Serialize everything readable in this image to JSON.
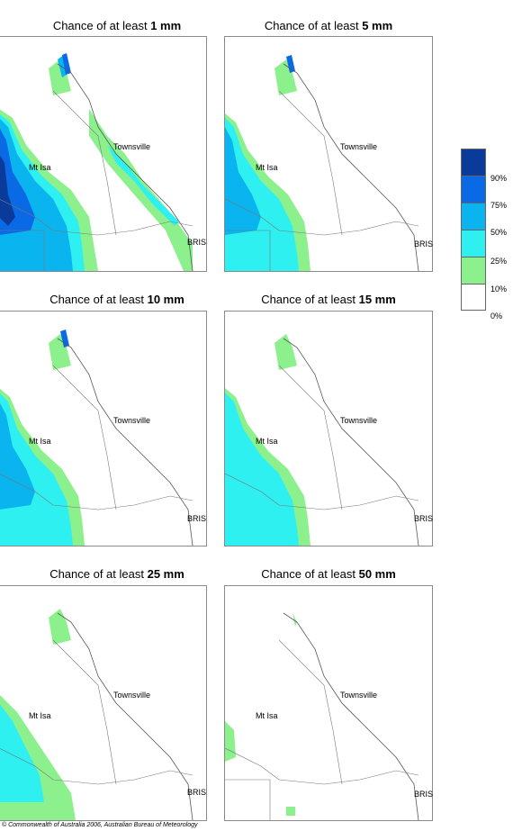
{
  "panels": [
    {
      "prefix": "Chance of at least ",
      "amount": "1 mm"
    },
    {
      "prefix": "Chance of at least ",
      "amount": "5 mm"
    },
    {
      "prefix": "Chance of at least ",
      "amount": "10 mm"
    },
    {
      "prefix": "Chance of at least ",
      "amount": "15 mm"
    },
    {
      "prefix": "Chance of at least ",
      "amount": "25 mm"
    },
    {
      "prefix": "Chance of at least ",
      "amount": "50 mm"
    }
  ],
  "places": {
    "townsville": "Townsville",
    "mt_isa": "Mt Isa",
    "brisbane": "BRIS"
  },
  "legend": {
    "labels": [
      "90%",
      "75%",
      "50%",
      "25%",
      "10%",
      "0%"
    ],
    "colors": [
      "#0a3a9a",
      "#0a6ae6",
      "#0ab4ee",
      "#2ef0f0",
      "#8cf08c",
      "#ffffff"
    ]
  },
  "copyright": "© Commonwealth of Australia 2006, Australian Bureau of Meteorology"
}
